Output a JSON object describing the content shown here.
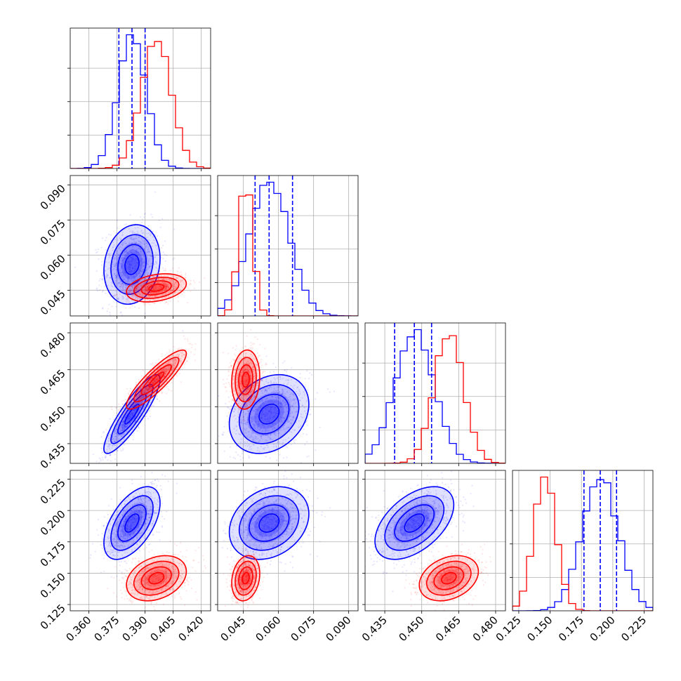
{
  "chart_data": {
    "type": "corner",
    "colors": {
      "blue": "#0000ff",
      "red": "#ff0000"
    },
    "grid": true,
    "params": [
      {
        "range": [
          0.35,
          0.425
        ],
        "ticks": [
          "0.360",
          "0.375",
          "0.390",
          "0.405",
          "0.420"
        ]
      },
      {
        "range": [
          0.034,
          0.094
        ],
        "ticks": [
          "0.045",
          "0.060",
          "0.075",
          "0.090"
        ]
      },
      {
        "range": [
          0.427,
          0.484
        ],
        "ticks": [
          "0.435",
          "0.450",
          "0.465",
          "0.480"
        ]
      },
      {
        "range": [
          0.12,
          0.232
        ],
        "ticks": [
          "0.125",
          "0.150",
          "0.175",
          "0.200",
          "0.225"
        ]
      }
    ],
    "series": [
      {
        "color": "blue",
        "means": [
          0.383,
          0.056,
          0.447,
          0.19
        ],
        "sds": [
          0.0075,
          0.0085,
          0.008,
          0.0145
        ],
        "correlations": {
          "1-0": 0.15,
          "2-0": 0.88,
          "2-1": 0.25,
          "3-0": 0.55,
          "3-1": 0.25,
          "3-2": 0.5
        },
        "quantiles": [
          [
            0.376,
            0.383,
            0.39
          ],
          [
            0.05,
            0.056,
            0.066
          ],
          [
            0.439,
            0.447,
            0.454
          ],
          [
            0.177,
            0.19,
            0.203
          ]
        ]
      },
      {
        "color": "red",
        "means": [
          0.396,
          0.046,
          0.461,
          0.146
        ],
        "sds": [
          0.008,
          0.003,
          0.006,
          0.009
        ],
        "correlations": {
          "1-0": 0.3,
          "2-0": 0.88,
          "2-1": 0.1,
          "3-0": 0.3,
          "3-1": 0.2,
          "3-2": 0.3
        },
        "quantiles": []
      }
    ]
  }
}
